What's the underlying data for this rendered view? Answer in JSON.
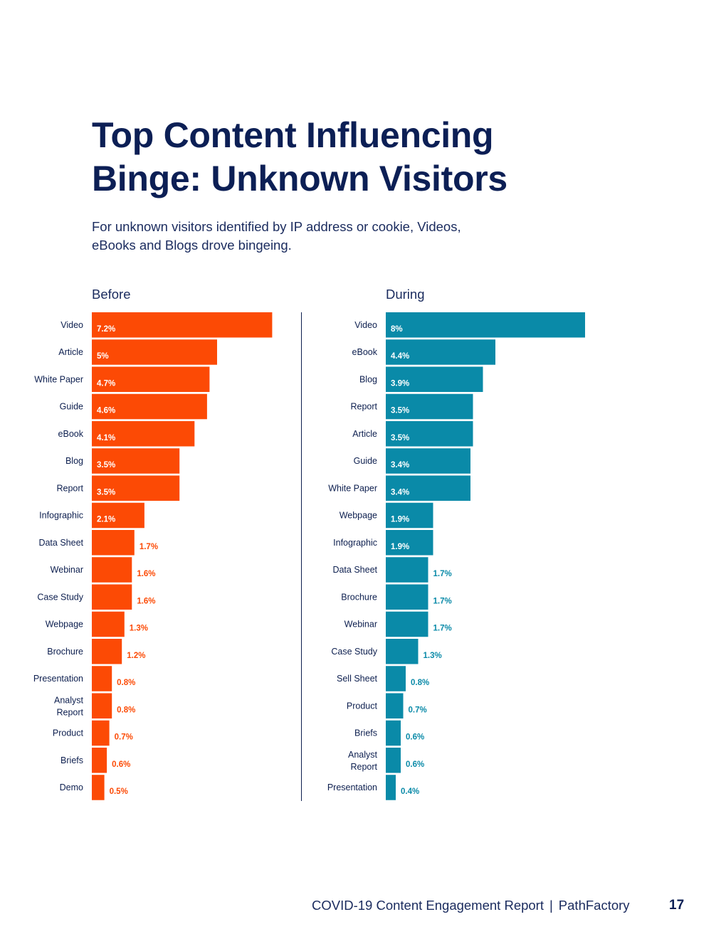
{
  "page": {
    "title_line1": "Top Content Influencing",
    "title_line2": "Binge: Unknown Visitors",
    "subtitle_line1": "For unknown visitors identified by IP address or cookie, Videos,",
    "subtitle_line2": "eBooks and Blogs drove bingeing.",
    "footer_report": "COVID-19 Content Engagement Report",
    "footer_separator": "|",
    "footer_company": "PathFactory",
    "page_number": "17"
  },
  "colors": {
    "before": "#fc4a05",
    "during": "#0a8aa8",
    "label_text": "#0d1f4f",
    "divider": "#0d1f4f"
  },
  "chart_data": [
    {
      "type": "bar",
      "orientation": "horizontal",
      "title": "Before",
      "unit": "%",
      "categories": [
        "Video",
        "Article",
        "White Paper",
        "Guide",
        "eBook",
        "Blog",
        "Report",
        "Infographic",
        "Data Sheet",
        "Webinar",
        "Case Study",
        "Webpage",
        "Brochure",
        "Presentation",
        "Analyst Report",
        "Product",
        "Briefs",
        "Demo"
      ],
      "values": [
        7.2,
        5,
        4.7,
        4.6,
        4.1,
        3.5,
        3.5,
        2.1,
        1.7,
        1.6,
        1.6,
        1.3,
        1.2,
        0.8,
        0.8,
        0.7,
        0.6,
        0.5
      ],
      "xlim": [
        0,
        8
      ]
    },
    {
      "type": "bar",
      "orientation": "horizontal",
      "title": "During",
      "unit": "%",
      "categories": [
        "Video",
        "eBook",
        "Blog",
        "Report",
        "Article",
        "Guide",
        "White Paper",
        "Webpage",
        "Infographic",
        "Data Sheet",
        "Brochure",
        "Webinar",
        "Case Study",
        "Sell Sheet",
        "Product",
        "Briefs",
        "Analyst Report",
        "Presentation"
      ],
      "values": [
        8,
        4.4,
        3.9,
        3.5,
        3.5,
        3.4,
        3.4,
        1.9,
        1.9,
        1.7,
        1.7,
        1.7,
        1.3,
        0.8,
        0.7,
        0.6,
        0.6,
        0.4
      ],
      "xlim": [
        0,
        8
      ]
    }
  ]
}
